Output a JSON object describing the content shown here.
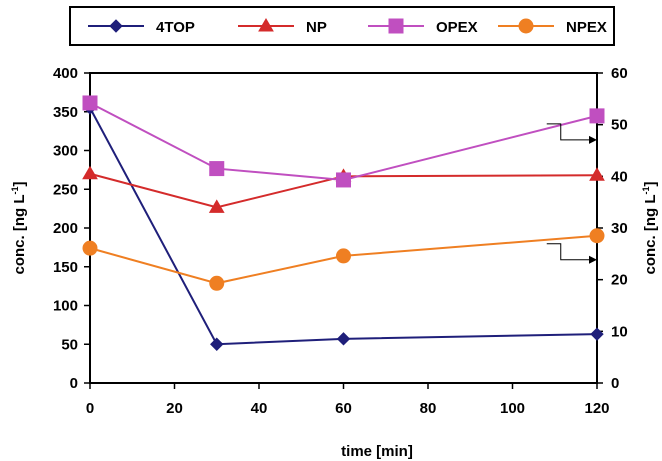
{
  "chart_data": {
    "type": "line",
    "xlabel": "time [min]",
    "ylabel_left": "conc. [ng L",
    "ylabel_right": "conc. [ng L",
    "ylabel_superscript": "-1",
    "ylabel_close": "]",
    "xlim": [
      0,
      120
    ],
    "ylim_left": [
      0,
      400
    ],
    "ylim_right": [
      0,
      60
    ],
    "x_ticks": [
      0,
      20,
      40,
      60,
      80,
      100,
      120
    ],
    "y_ticks_left": [
      0,
      50,
      100,
      150,
      200,
      250,
      300,
      350,
      400
    ],
    "y_ticks_right": [
      0,
      10,
      20,
      30,
      40,
      50,
      60
    ],
    "grid": false,
    "legend_position": "top",
    "series": [
      {
        "name": "4TOP",
        "axis": "left",
        "color": "#1f1f7a",
        "marker": "diamond",
        "x": [
          0,
          30,
          60,
          120
        ],
        "values": [
          355,
          50,
          57,
          63
        ]
      },
      {
        "name": "NP",
        "axis": "right",
        "color": "#d42b2b",
        "marker": "triangle",
        "x": [
          0,
          30,
          60,
          120
        ],
        "values": [
          40.5,
          34,
          40,
          40.2
        ]
      },
      {
        "name": "OPEX",
        "axis": "right",
        "color": "#c04fc0",
        "marker": "square",
        "x": [
          0,
          30,
          60,
          120
        ],
        "values": [
          54.2,
          41.5,
          39.3,
          51.7
        ]
      },
      {
        "name": "NPEX",
        "axis": "right",
        "color": "#ef7f22",
        "marker": "circle",
        "x": [
          0,
          30,
          60,
          120
        ],
        "values": [
          26.1,
          19.3,
          24.6,
          28.5
        ]
      }
    ],
    "annotations": [
      {
        "type": "arrow-to-right-axis",
        "series": "OPEX",
        "x": 110,
        "y_right": 51.7
      },
      {
        "type": "arrow-to-right-axis",
        "series": "NPEX",
        "x": 110,
        "y_right": 28.5
      }
    ]
  }
}
